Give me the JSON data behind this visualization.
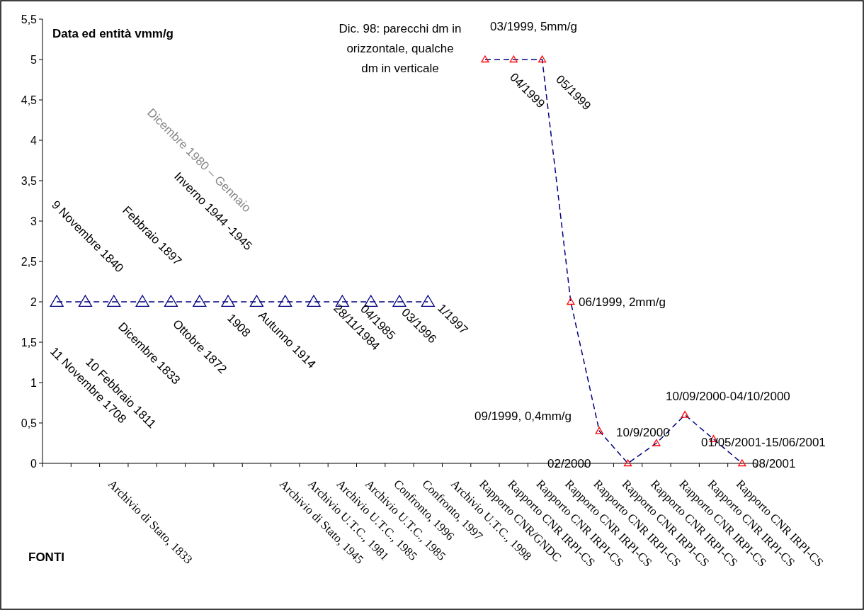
{
  "chart_data": {
    "type": "line",
    "xlabel": "FONTI",
    "categories": [
      null,
      null,
      "Archivio di Stato, 1833",
      null,
      null,
      null,
      null,
      null,
      "Archivio di Stato, 1945",
      "Archivio U.T.C., 1981",
      "Archivio U.T.C., 1985",
      "Archivio U.T.C., 1985",
      "Confronto, 1996",
      "Confronto, 1997",
      "Archivio U.T.C., 1998",
      "Rapporto CNR/GNDC",
      "Rapporto CNR IRPI-CS",
      "Rapporto CNR IRPI-CS",
      "Rapporto CNR IRPI-CS",
      "Rapporto CNR IRPI-CS",
      "Rapporto CNR IRPI-CS",
      "Rapporto CNR IRPI-CS",
      "Rapporto CNR IRPI-CS",
      "Rapporto CNR IRPI-CS",
      "Rapporto CNR IRPI-CS"
    ],
    "series": [
      {
        "color": "#000080",
        "marker": "triangle",
        "line_style": "dashed",
        "values": [
          2,
          2,
          2,
          2,
          2,
          2,
          2,
          2,
          2,
          2,
          2,
          2,
          2,
          2,
          null,
          null,
          null,
          null,
          null,
          null,
          null,
          null,
          null,
          null,
          null
        ]
      },
      {
        "type": "line",
        "color": "#000080",
        "marker": "none",
        "line_style": "dashed",
        "values": [
          null,
          null,
          null,
          null,
          null,
          null,
          null,
          null,
          null,
          null,
          null,
          null,
          null,
          null,
          null,
          5,
          5,
          5,
          2,
          0.4,
          0,
          0.25,
          0.6,
          0.3,
          0
        ]
      },
      {
        "type": "scatter",
        "color": "#ff0000",
        "marker": "triangle",
        "values": [
          null,
          null,
          null,
          null,
          null,
          null,
          null,
          null,
          null,
          null,
          null,
          null,
          null,
          null,
          null,
          5,
          5,
          5,
          2,
          0.4,
          0,
          0.25,
          0.6,
          0.3,
          0
        ]
      }
    ],
    "ylim": [
      0,
      5.5
    ],
    "yticks": [
      0,
      {
        "value": 0.5,
        "label": "0,5"
      },
      1,
      {
        "value": 1.5,
        "label": "1,5"
      },
      2,
      {
        "value": 2.5,
        "label": "2,5"
      },
      3,
      {
        "value": 3.5,
        "label": "3,5"
      },
      4,
      {
        "value": 4.5,
        "label": "4,5"
      },
      5,
      {
        "value": 5.5,
        "label": "5,5"
      }
    ],
    "grid": false,
    "annotations": [
      "Data ed entità vmm/g",
      "Dic. 98: parecchi dm in",
      "orizzontale, qualche",
      "dm in verticale",
      "11 Novembre 1708",
      "10 Febbraio 1811",
      "Dicembre 1833",
      "9 Novembre 1840",
      "Ottobre 1872",
      "Febbraio 1897",
      "1908",
      "Autunno 1914",
      "Inverno 1944 -1945",
      "Dicembre 1980 – Gennaio",
      "28/11/1984",
      "04/1985",
      "03/1996",
      "1/1997",
      "03/1999, 5mm/g",
      "04/1999",
      "05/1999",
      "06/1999, 2mm/g",
      "09/1999, 0,4mm/g",
      "02/2000",
      "10/9/2000",
      "10/09/2000-04/10/2000",
      "01/05/2001-15/06/2001",
      "08/2001"
    ]
  }
}
